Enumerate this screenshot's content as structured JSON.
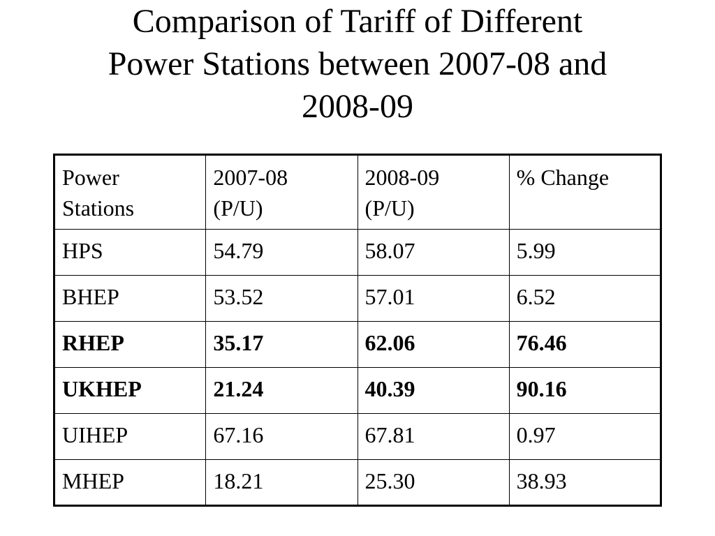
{
  "title": {
    "line1": "Comparison of Tariff of Different",
    "line2": "Power Stations between 2007-08 and",
    "line3": "2008-09"
  },
  "table": {
    "headers": [
      [
        "Power",
        "Stations"
      ],
      [
        "2007-08",
        "(P/U)"
      ],
      [
        "2008-09",
        "(P/U)"
      ],
      [
        "% Change",
        ""
      ]
    ],
    "rows": [
      {
        "station": "HPS",
        "y2007": "54.79",
        "y2008": "58.07",
        "change": "5.99",
        "bold": false
      },
      {
        "station": "BHEP",
        "y2007": "53.52",
        "y2008": "57.01",
        "change": "6.52",
        "bold": false
      },
      {
        "station": "RHEP",
        "y2007": "35.17",
        "y2008": "62.06",
        "change": "76.46",
        "bold": true
      },
      {
        "station": "UKHEP",
        "y2007": "21.24",
        "y2008": "40.39",
        "change": "90.16",
        "bold": true
      },
      {
        "station": "UIHEP",
        "y2007": "67.16",
        "y2008": "67.81",
        "change": "0.97",
        "bold": false
      },
      {
        "station": "MHEP",
        "y2007": "18.21",
        "y2008": "25.30",
        "change": "38.93",
        "bold": false
      }
    ]
  }
}
